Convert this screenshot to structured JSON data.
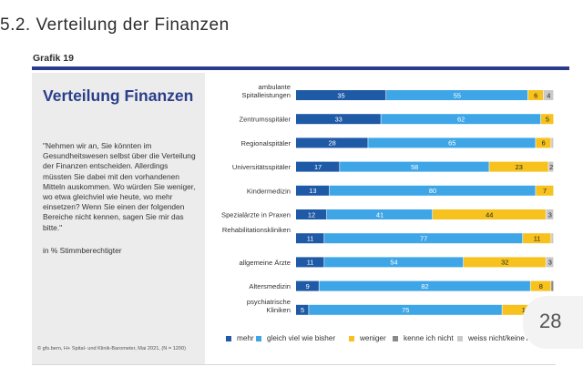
{
  "page": {
    "section_title": "5.2. Verteilung der Finanzen",
    "grafik_label": "Grafik 19",
    "panel_title": "Verteilung Finanzen",
    "question": "\"Nehmen wir an, Sie könnten im Gesundheitswesen selbst über die Verteilung der Finanzen entscheiden. Allerdings müssten Sie dabei mit den vorhandenen Mitteln auskommen. Wo würden Sie weniger, wo etwa gleichviel wie heute, wo mehr einsetzen? Wenn Sie einen der folgenden Bereiche nicht kennen, sagen Sie mir das bitte.\"",
    "unit_note": "in % Stimmberechtigter",
    "source": "© gfs.bern, H+ Spital- und Klinik-Barometer, Mai 2021, (N = 1200)",
    "page_number": "28"
  },
  "colors": {
    "header_rule": "#2a3a8f",
    "mehr": "#1f5aa6",
    "gleich": "#3ea6e6",
    "weniger": "#f7c21e",
    "kenne_nicht": "#8a8a8a",
    "weiss_nicht": "#c9c9c9"
  },
  "chart_data": {
    "type": "bar",
    "orientation": "horizontal",
    "stacked": true,
    "xlim": [
      0,
      100
    ],
    "categories": [
      "ambulante Spitalleistungen",
      "Zentrumsspitäler",
      "Regionalspitäler",
      "Universitätsspitäler",
      "Kindermedizin",
      "Spezialärzte in Praxen",
      "Rehabilitationskliniken",
      "allgemeine Ärzte",
      "Altersmedizin",
      "psychiatrische Kliniken"
    ],
    "series": [
      {
        "name": "mehr",
        "color_key": "mehr",
        "values": [
          35,
          33,
          28,
          17,
          13,
          12,
          11,
          11,
          9,
          5
        ]
      },
      {
        "name": "gleich viel wie bisher",
        "color_key": "gleich",
        "values": [
          55,
          62,
          65,
          58,
          80,
          41,
          77,
          54,
          82,
          75
        ]
      },
      {
        "name": "weniger",
        "color_key": "weniger",
        "values": [
          6,
          5,
          6,
          23,
          7,
          44,
          11,
          32,
          8,
          18
        ]
      },
      {
        "name": "kenne ich nicht",
        "color_key": "kenne_nicht",
        "values": [
          0,
          0,
          0,
          0,
          0,
          0,
          0,
          0,
          1,
          1
        ]
      },
      {
        "name": "weiss nicht/keine Antwort",
        "color_key": "weiss_nicht",
        "values": [
          4,
          0,
          1,
          2,
          0,
          3,
          1,
          3,
          0,
          1
        ]
      }
    ],
    "label_min_value": 2,
    "legend_position": "bottom"
  }
}
